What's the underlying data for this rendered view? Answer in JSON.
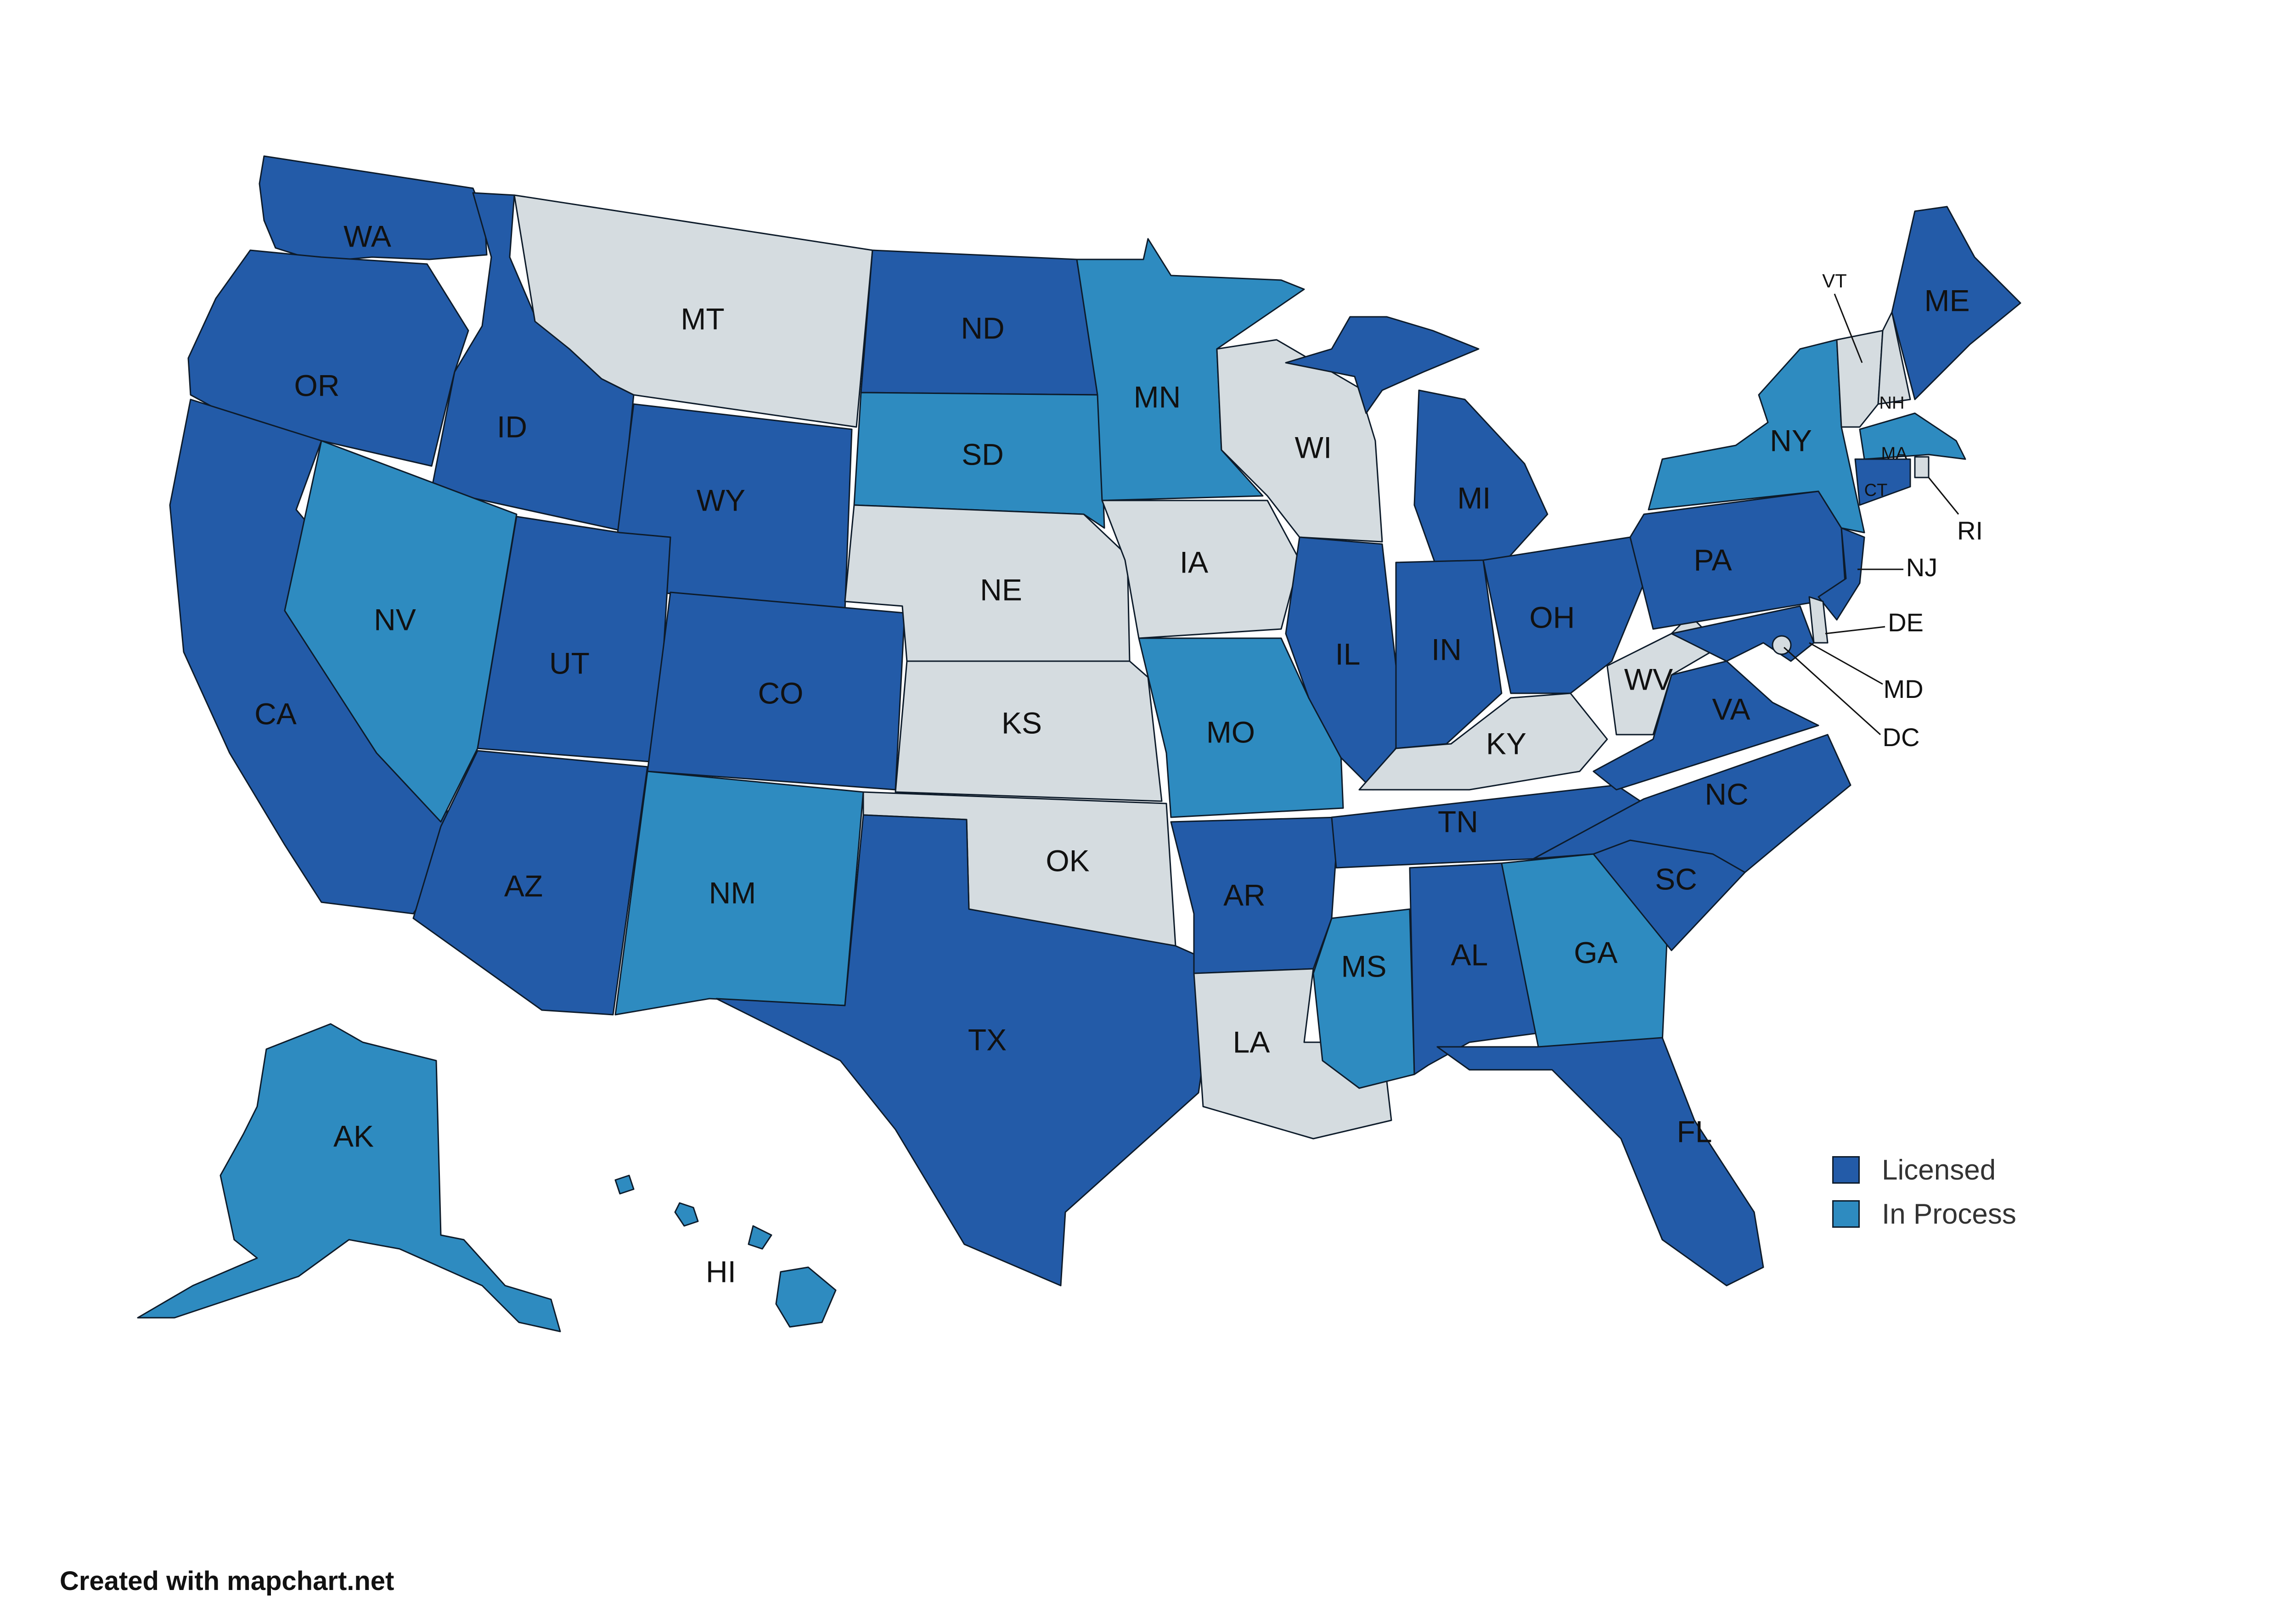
{
  "colors": {
    "licensed": "#235ba8",
    "in_process": "#2e8bc0",
    "none": "#d5dce0",
    "border": "#0d1b2a"
  },
  "legend": [
    {
      "label": "Licensed",
      "status": "licensed"
    },
    {
      "label": "In Process",
      "status": "in_process"
    }
  ],
  "credit": "Created with mapchart.net",
  "states": [
    {
      "code": "WA",
      "label": "WA",
      "status": "licensed"
    },
    {
      "code": "OR",
      "label": "OR",
      "status": "licensed"
    },
    {
      "code": "CA",
      "label": "CA",
      "status": "licensed"
    },
    {
      "code": "ID",
      "label": "ID",
      "status": "licensed"
    },
    {
      "code": "NV",
      "label": "NV",
      "status": "in_process"
    },
    {
      "code": "MT",
      "label": "MT",
      "status": "none"
    },
    {
      "code": "WY",
      "label": "WY",
      "status": "licensed"
    },
    {
      "code": "UT",
      "label": "UT",
      "status": "licensed"
    },
    {
      "code": "AZ",
      "label": "AZ",
      "status": "licensed"
    },
    {
      "code": "CO",
      "label": "CO",
      "status": "licensed"
    },
    {
      "code": "NM",
      "label": "NM",
      "status": "in_process"
    },
    {
      "code": "ND",
      "label": "ND",
      "status": "licensed"
    },
    {
      "code": "SD",
      "label": "SD",
      "status": "in_process"
    },
    {
      "code": "NE",
      "label": "NE",
      "status": "none"
    },
    {
      "code": "KS",
      "label": "KS",
      "status": "none"
    },
    {
      "code": "OK",
      "label": "OK",
      "status": "none"
    },
    {
      "code": "TX",
      "label": "TX",
      "status": "licensed"
    },
    {
      "code": "MN",
      "label": "MN",
      "status": "in_process"
    },
    {
      "code": "IA",
      "label": "IA",
      "status": "none"
    },
    {
      "code": "MO",
      "label": "MO",
      "status": "in_process"
    },
    {
      "code": "AR",
      "label": "AR",
      "status": "licensed"
    },
    {
      "code": "LA",
      "label": "LA",
      "status": "none"
    },
    {
      "code": "WI",
      "label": "WI",
      "status": "none"
    },
    {
      "code": "IL",
      "label": "IL",
      "status": "licensed"
    },
    {
      "code": "MS",
      "label": "MS",
      "status": "in_process"
    },
    {
      "code": "MI",
      "label": "MI",
      "status": "licensed"
    },
    {
      "code": "IN",
      "label": "IN",
      "status": "licensed"
    },
    {
      "code": "OH",
      "label": "OH",
      "status": "licensed"
    },
    {
      "code": "KY",
      "label": "KY",
      "status": "none"
    },
    {
      "code": "TN",
      "label": "TN",
      "status": "licensed"
    },
    {
      "code": "AL",
      "label": "AL",
      "status": "licensed"
    },
    {
      "code": "GA",
      "label": "GA",
      "status": "in_process"
    },
    {
      "code": "FL",
      "label": "FL",
      "status": "licensed"
    },
    {
      "code": "SC",
      "label": "SC",
      "status": "licensed"
    },
    {
      "code": "NC",
      "label": "NC",
      "status": "licensed"
    },
    {
      "code": "VA",
      "label": "VA",
      "status": "licensed"
    },
    {
      "code": "WV",
      "label": "WV",
      "status": "none"
    },
    {
      "code": "PA",
      "label": "PA",
      "status": "licensed"
    },
    {
      "code": "NY",
      "label": "NY",
      "status": "in_process"
    },
    {
      "code": "VT",
      "label": "VT",
      "status": "none"
    },
    {
      "code": "NH",
      "label": "NH",
      "status": "none"
    },
    {
      "code": "ME",
      "label": "ME",
      "status": "licensed"
    },
    {
      "code": "MA",
      "label": "MA",
      "status": "in_process"
    },
    {
      "code": "RI",
      "label": "RI",
      "status": "none"
    },
    {
      "code": "CT",
      "label": "CT",
      "status": "licensed"
    },
    {
      "code": "NJ",
      "label": "NJ",
      "status": "licensed"
    },
    {
      "code": "DE",
      "label": "DE",
      "status": "none"
    },
    {
      "code": "MD",
      "label": "MD",
      "status": "licensed"
    },
    {
      "code": "DC",
      "label": "DC",
      "status": "none"
    },
    {
      "code": "AK",
      "label": "AK",
      "status": "in_process"
    },
    {
      "code": "HI",
      "label": "HI",
      "status": "in_process"
    }
  ]
}
